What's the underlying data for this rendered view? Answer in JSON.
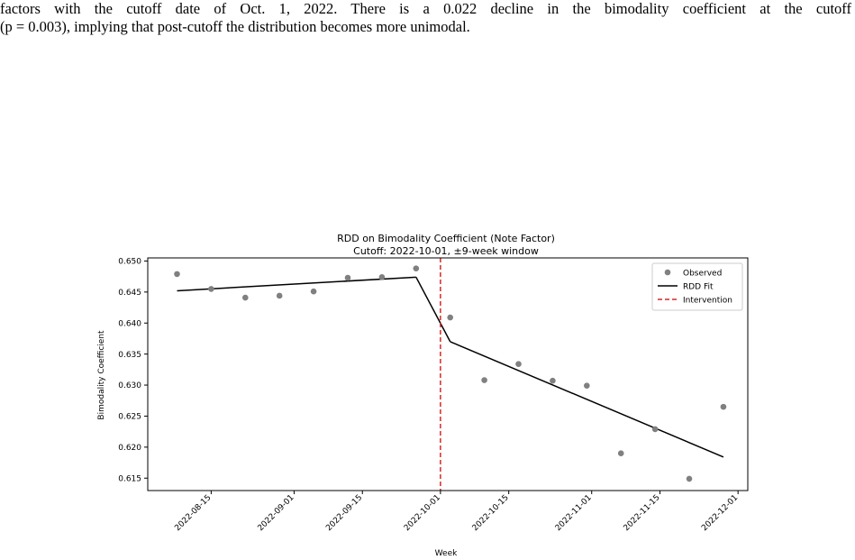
{
  "caption": {
    "line1": "factors with the cutoff date of Oct. 1, 2022. There is a 0.022 decline in the bimodality coefficient at the cutoff",
    "line2": "(p = 0.003), implying that post-cutoff the distribution becomes more unimodal."
  },
  "chart_data": {
    "type": "scatter",
    "title": "RDD on Bimodality Coefficient (Note Factor)",
    "subtitle": "Cutoff: 2022-10-01, ±9-week window",
    "xlabel": "Week",
    "ylabel": "Bimodality Coefficient",
    "ylim": [
      0.613,
      0.6505
    ],
    "xlim": [
      "2022-08-02",
      "2022-12-03"
    ],
    "x_ticks": [
      "2022-08-15",
      "2022-09-01",
      "2022-09-15",
      "2022-10-01",
      "2022-10-15",
      "2022-11-01",
      "2022-11-15",
      "2022-12-01"
    ],
    "y_ticks": [
      "0.615",
      "0.620",
      "0.625",
      "0.630",
      "0.635",
      "0.640",
      "0.645",
      "0.650"
    ],
    "grid": false,
    "legend_position": "top-right",
    "series": [
      {
        "name": "Observed",
        "kind": "points",
        "color": "#808080",
        "points": [
          {
            "x": "2022-08-08",
            "y": 0.6479
          },
          {
            "x": "2022-08-15",
            "y": 0.6455
          },
          {
            "x": "2022-08-22",
            "y": 0.6441
          },
          {
            "x": "2022-08-29",
            "y": 0.6444
          },
          {
            "x": "2022-09-05",
            "y": 0.6451
          },
          {
            "x": "2022-09-12",
            "y": 0.6473
          },
          {
            "x": "2022-09-19",
            "y": 0.6474
          },
          {
            "x": "2022-09-26",
            "y": 0.6488
          },
          {
            "x": "2022-10-03",
            "y": 0.6409
          },
          {
            "x": "2022-10-10",
            "y": 0.6308
          },
          {
            "x": "2022-10-17",
            "y": 0.6334
          },
          {
            "x": "2022-10-24",
            "y": 0.6307
          },
          {
            "x": "2022-10-31",
            "y": 0.6299
          },
          {
            "x": "2022-11-07",
            "y": 0.619
          },
          {
            "x": "2022-11-14",
            "y": 0.6229
          },
          {
            "x": "2022-11-21",
            "y": 0.6149
          },
          {
            "x": "2022-11-28",
            "y": 0.6265
          }
        ]
      },
      {
        "name": "RDD Fit",
        "kind": "line",
        "color": "#000000",
        "segments": [
          [
            {
              "x": "2022-08-08",
              "y": 0.6452
            },
            {
              "x": "2022-09-26",
              "y": 0.6474
            }
          ],
          [
            {
              "x": "2022-09-26",
              "y": 0.6474
            },
            {
              "x": "2022-10-03",
              "y": 0.637
            }
          ],
          [
            {
              "x": "2022-10-03",
              "y": 0.637
            },
            {
              "x": "2022-11-28",
              "y": 0.6184
            }
          ]
        ]
      },
      {
        "name": "Intervention",
        "kind": "vline",
        "color": "#d62728",
        "x": "2022-10-01"
      }
    ]
  }
}
